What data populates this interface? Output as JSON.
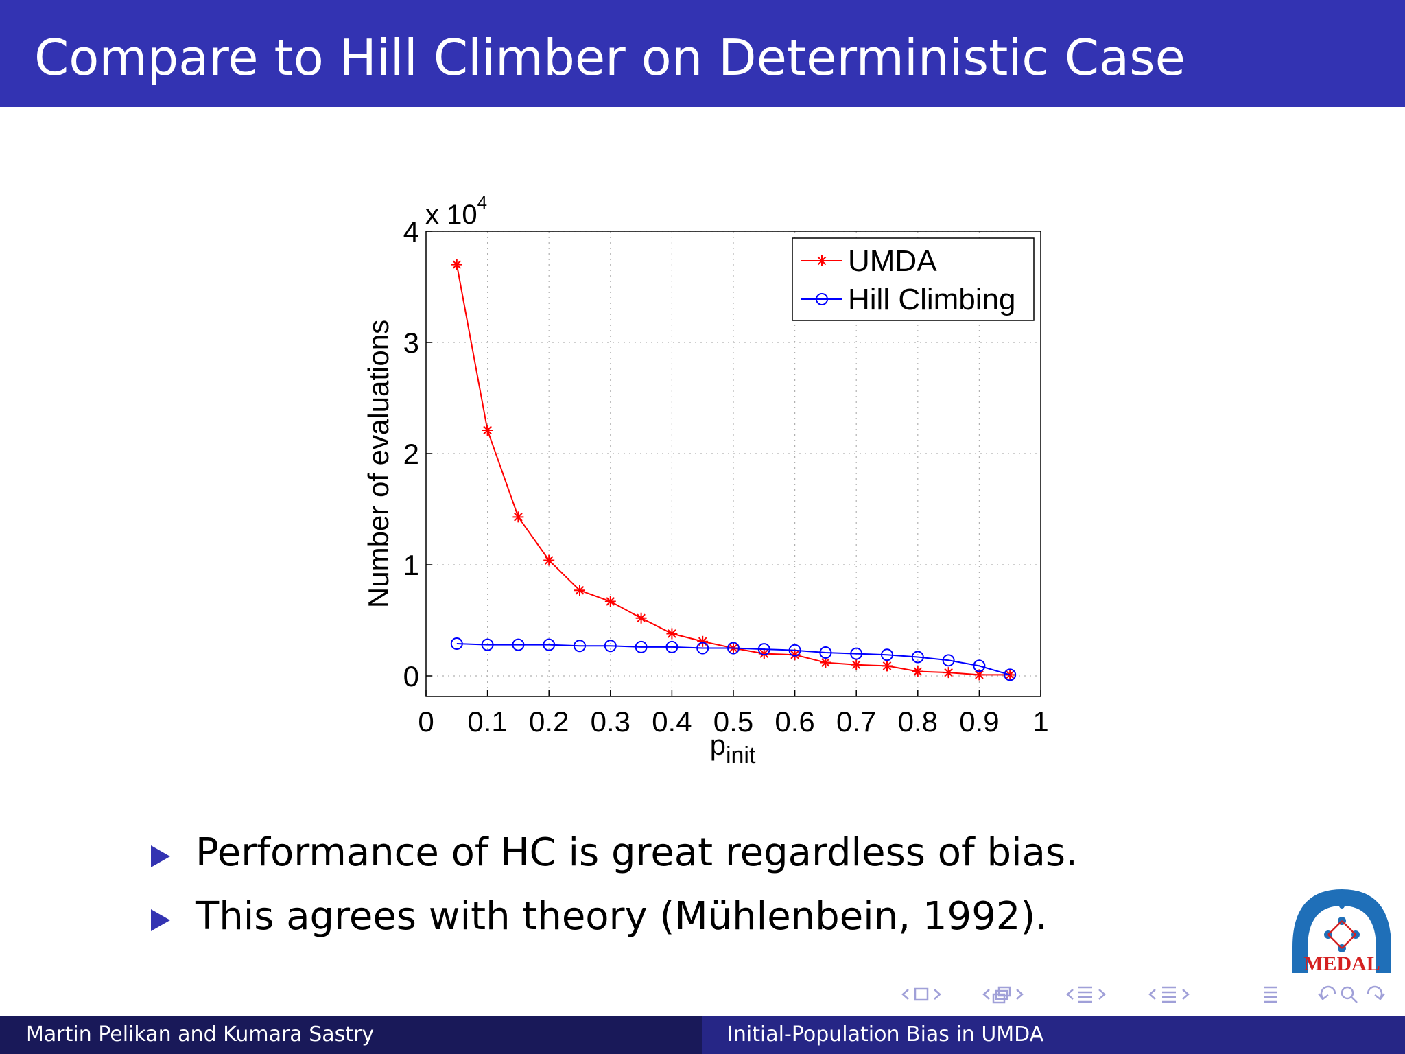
{
  "slide": {
    "title": "Compare to Hill Climber on Deterministic Case",
    "bullets": [
      "Performance of HC is great regardless of bias.",
      "This agrees with theory (Mühlenbein, 1992)."
    ],
    "footer_left": "Martin Pelikan and Kumara Sastry",
    "footer_right": "Initial-Population Bias in UMDA",
    "logo_text": "MEDAL",
    "colors": {
      "header": "#3333b2",
      "footer_left": "#191959",
      "footer_right": "#262686",
      "bullet": "#3333b2"
    }
  },
  "navigation": {
    "icons": [
      "nav-prev-frame-icon",
      "nav-frame-icon",
      "nav-next-frame-icon",
      "nav-prev-subsection-icon",
      "nav-subsection-icon",
      "nav-next-subsection-icon",
      "nav-prev-section-icon",
      "nav-section-icon",
      "nav-next-section-icon",
      "nav-prev-page-icon",
      "nav-page-icon",
      "nav-next-page-icon",
      "nav-outline-icon",
      "nav-back-icon",
      "nav-search-icon",
      "nav-forward-icon"
    ]
  },
  "chart_data": {
    "type": "line",
    "xlabel": "p",
    "xlabel_sub": "init",
    "ylabel": "Number of evaluations",
    "y_multiplier": "x 10",
    "y_multiplier_exp": "4",
    "xlim": [
      0,
      1
    ],
    "ylim": [
      0,
      4
    ],
    "xticks": [
      0,
      0.1,
      0.2,
      0.3,
      0.4,
      0.5,
      0.6,
      0.7,
      0.8,
      0.9,
      1
    ],
    "xtick_labels": [
      "0",
      "0.1",
      "0.2",
      "0.3",
      "0.4",
      "0.5",
      "0.6",
      "0.7",
      "0.8",
      "0.9",
      "1"
    ],
    "yticks": [
      0,
      1,
      2,
      3,
      4
    ],
    "ytick_labels": [
      "0",
      "1",
      "2",
      "3",
      "4"
    ],
    "grid": true,
    "legend_position": "top-right",
    "x": [
      0.05,
      0.1,
      0.15,
      0.2,
      0.25,
      0.3,
      0.35,
      0.4,
      0.45,
      0.5,
      0.55,
      0.6,
      0.65,
      0.7,
      0.75,
      0.8,
      0.85,
      0.9,
      0.95
    ],
    "series": [
      {
        "name": "UMDA",
        "color": "#ff0000",
        "marker": "asterisk",
        "values": [
          3.7,
          2.21,
          1.43,
          1.04,
          0.77,
          0.67,
          0.52,
          0.38,
          0.31,
          0.25,
          0.2,
          0.19,
          0.12,
          0.1,
          0.09,
          0.04,
          0.03,
          0.01,
          0.01
        ]
      },
      {
        "name": "Hill Climbing",
        "color": "#0000ff",
        "marker": "circle",
        "values": [
          0.29,
          0.28,
          0.28,
          0.28,
          0.27,
          0.27,
          0.26,
          0.26,
          0.25,
          0.25,
          0.24,
          0.23,
          0.21,
          0.2,
          0.19,
          0.17,
          0.14,
          0.09,
          0.01
        ]
      }
    ]
  }
}
